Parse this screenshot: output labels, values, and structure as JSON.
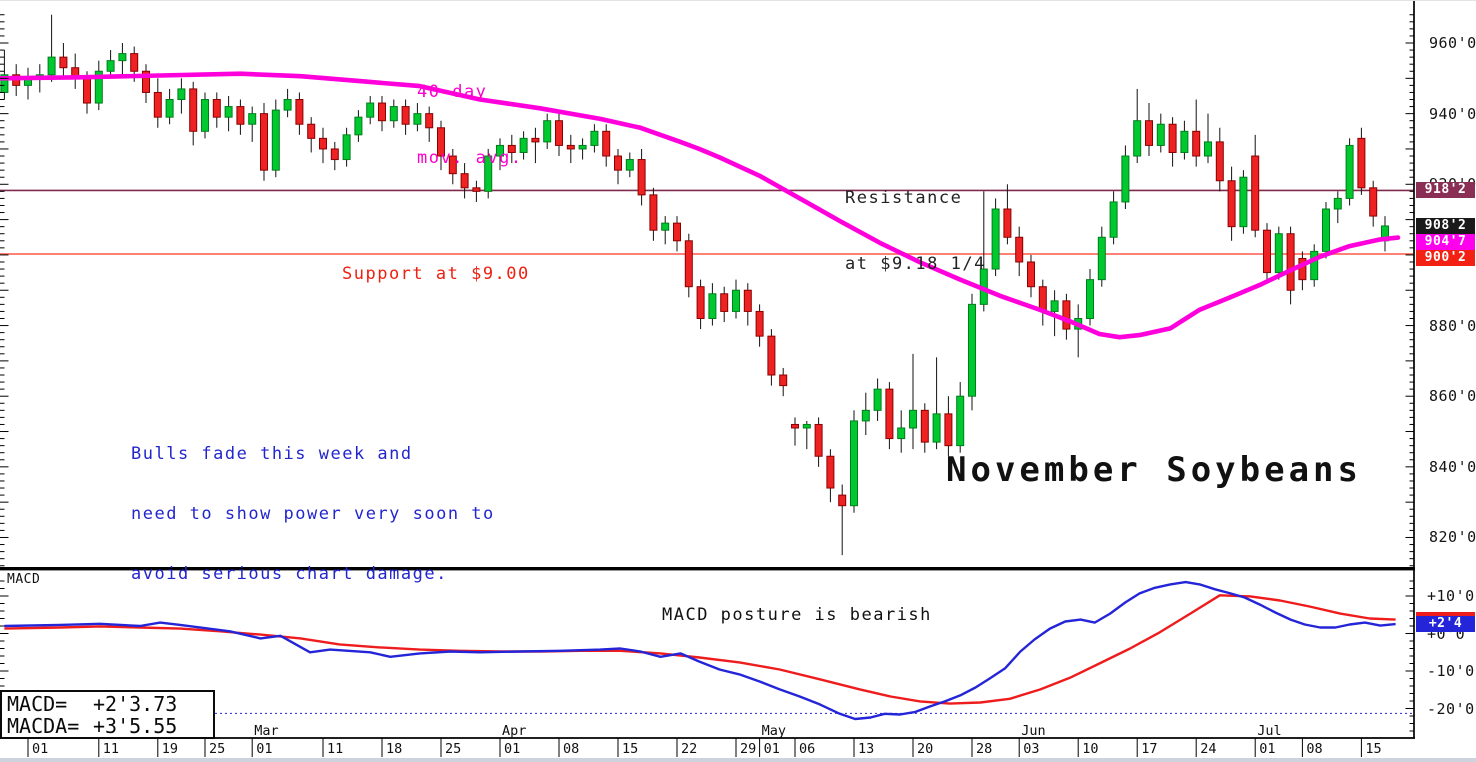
{
  "window": {
    "title": "November Soybeans"
  },
  "annotations": {
    "ma_line1": "40-day",
    "ma_line2": "mov. avg.",
    "resistance_line1": "Resistance",
    "resistance_line2": "at $9.18 1/4",
    "support": "Support at $9.00",
    "commentary_line1": "Bulls fade this week and",
    "commentary_line2": "need to show power very soon to",
    "commentary_line3": "avoid serious chart damage.",
    "macd_comment": "MACD posture is bearish",
    "panel_label": "MACD"
  },
  "readout": {
    "macd_label": "MACD=",
    "macd_value": "+2'3.73",
    "macda_label": "MACDA=",
    "macda_value": "+3'5.55"
  },
  "price_axis": {
    "labels": [
      {
        "text": "960'0",
        "value": 960
      },
      {
        "text": "940'0",
        "value": 940
      },
      {
        "text": "920'0",
        "value": 920
      },
      {
        "text": "880'0",
        "value": 880
      },
      {
        "text": "860'0",
        "value": 860
      },
      {
        "text": "840'0",
        "value": 840
      },
      {
        "text": "820'0",
        "value": 820
      }
    ],
    "badges": [
      {
        "text": "918'2",
        "value": 918.25,
        "color": "#8b2e55"
      },
      {
        "text": "908'2",
        "value": 908.25,
        "color": "#1a1a1a"
      },
      {
        "text": "904'7",
        "value": 904.875,
        "color": "#ff00ee"
      },
      {
        "text": "900'2",
        "value": 900.25,
        "color": "#f32114"
      }
    ]
  },
  "macd_axis": {
    "labels": [
      {
        "text": "+10'0",
        "value": 10
      },
      {
        "text": "+0'0",
        "value": 0
      },
      {
        "text": "-10'0",
        "value": -10
      },
      {
        "text": "-20'0",
        "value": -20
      }
    ],
    "badges": [
      {
        "text": "",
        "value": 3.7,
        "color": "#ee1c1c"
      },
      {
        "text": "+2'4",
        "value": 2.5,
        "color": "#2424d8"
      }
    ]
  },
  "x_axis": {
    "ticks": [
      {
        "label": "01",
        "day": 0
      },
      {
        "label": "11",
        "day": 6
      },
      {
        "label": "19",
        "day": 11
      },
      {
        "label": "25",
        "day": 15
      },
      {
        "label": "01",
        "day": 19
      },
      {
        "label": "11",
        "day": 25
      },
      {
        "label": "18",
        "day": 30
      },
      {
        "label": "25",
        "day": 35
      },
      {
        "label": "01",
        "day": 40
      },
      {
        "label": "08",
        "day": 45
      },
      {
        "label": "15",
        "day": 50
      },
      {
        "label": "22",
        "day": 55
      },
      {
        "label": "29",
        "day": 60
      },
      {
        "label": "01",
        "day": 62
      },
      {
        "label": "06",
        "day": 65
      },
      {
        "label": "13",
        "day": 70
      },
      {
        "label": "20",
        "day": 75
      },
      {
        "label": "28",
        "day": 80
      },
      {
        "label": "03",
        "day": 84
      },
      {
        "label": "10",
        "day": 89
      },
      {
        "label": "17",
        "day": 94
      },
      {
        "label": "24",
        "day": 99
      },
      {
        "label": "01",
        "day": 104
      },
      {
        "label": "08",
        "day": 108
      },
      {
        "label": "15",
        "day": 113
      }
    ],
    "months": [
      {
        "label": "Mar",
        "day": 19
      },
      {
        "label": "Apr",
        "day": 40
      },
      {
        "label": "May",
        "day": 62
      },
      {
        "label": "Jun",
        "day": 84
      },
      {
        "label": "Jul",
        "day": 104
      }
    ]
  },
  "colors": {
    "up": "#00c92f",
    "up_border": "#007d1c",
    "down": "#ee2222",
    "down_border": "#8b0000",
    "wick": "#111111",
    "ma": "#ff00dd",
    "resistance": "#802a4e",
    "support": "#ff6e60",
    "macd_line": "#2424d8",
    "macd_signal": "#ee1c1c",
    "axis": "#000000"
  },
  "chart_data": {
    "type": "candlestick+macd",
    "instrument": "November Soybeans",
    "levels": {
      "resistance": 918.25,
      "support": 900.25,
      "last_close": 908.25,
      "ma_current": 904.875
    },
    "first_candle_day": -2,
    "candles": [
      [
        946,
        958,
        944,
        951
      ],
      [
        951,
        954,
        945,
        948
      ],
      [
        948,
        953,
        944,
        950
      ],
      [
        950,
        954,
        946,
        951
      ],
      [
        951,
        968,
        949,
        956
      ],
      [
        956,
        960,
        950,
        953
      ],
      [
        953,
        957,
        947,
        950
      ],
      [
        950,
        952,
        940,
        943
      ],
      [
        943,
        955,
        941,
        952
      ],
      [
        952,
        958,
        950,
        955
      ],
      [
        955,
        960,
        951,
        957
      ],
      [
        957,
        959,
        949,
        952
      ],
      [
        952,
        954,
        943,
        946
      ],
      [
        946,
        950,
        936,
        939
      ],
      [
        939,
        947,
        937,
        944
      ],
      [
        944,
        950,
        940,
        947
      ],
      [
        947,
        949,
        931,
        935
      ],
      [
        935,
        946,
        933,
        944
      ],
      [
        944,
        946,
        936,
        939
      ],
      [
        939,
        945,
        935,
        942
      ],
      [
        942,
        944,
        934,
        937
      ],
      [
        937,
        942,
        932,
        940
      ],
      [
        940,
        943,
        921,
        924
      ],
      [
        924,
        944,
        922,
        941
      ],
      [
        941,
        947,
        939,
        944
      ],
      [
        944,
        946,
        934,
        937
      ],
      [
        937,
        939,
        929,
        933
      ],
      [
        933,
        936,
        926,
        930
      ],
      [
        930,
        932,
        924,
        927
      ],
      [
        927,
        936,
        925,
        934
      ],
      [
        934,
        941,
        932,
        939
      ],
      [
        939,
        945,
        937,
        943
      ],
      [
        943,
        945,
        935,
        938
      ],
      [
        938,
        944,
        936,
        942
      ],
      [
        942,
        944,
        934,
        937
      ],
      [
        937,
        943,
        935,
        940
      ],
      [
        940,
        942,
        932,
        936
      ],
      [
        936,
        938,
        924,
        928
      ],
      [
        928,
        930,
        920,
        923
      ],
      [
        923,
        926,
        916,
        919
      ],
      [
        919,
        921,
        915,
        918
      ],
      [
        918,
        930,
        916,
        928
      ],
      [
        928,
        933,
        924,
        931
      ],
      [
        931,
        934,
        926,
        929
      ],
      [
        929,
        935,
        927,
        933
      ],
      [
        933,
        936,
        926,
        932
      ],
      [
        932,
        940,
        930,
        938
      ],
      [
        938,
        940,
        928,
        931
      ],
      [
        931,
        934,
        926,
        930
      ],
      [
        930,
        933,
        927,
        931
      ],
      [
        931,
        937,
        929,
        935
      ],
      [
        935,
        937,
        925,
        928
      ],
      [
        928,
        930,
        920,
        924
      ],
      [
        924,
        929,
        922,
        927
      ],
      [
        927,
        930,
        914,
        917
      ],
      [
        917,
        919,
        904,
        907
      ],
      [
        907,
        911,
        903,
        909
      ],
      [
        909,
        911,
        901,
        904
      ],
      [
        904,
        906,
        888,
        891
      ],
      [
        891,
        893,
        879,
        882
      ],
      [
        882,
        892,
        880,
        889
      ],
      [
        889,
        891,
        881,
        884
      ],
      [
        884,
        893,
        882,
        890
      ],
      [
        890,
        892,
        880,
        884
      ],
      [
        884,
        886,
        874,
        877
      ],
      [
        877,
        879,
        863,
        866
      ],
      [
        866,
        868,
        860,
        863
      ],
      [
        852,
        854,
        846,
        851
      ],
      [
        851,
        853,
        845,
        852
      ],
      [
        852,
        854,
        840,
        843
      ],
      [
        843,
        845,
        830,
        834
      ],
      [
        832,
        835,
        815,
        829
      ],
      [
        829,
        856,
        827,
        853
      ],
      [
        853,
        861,
        849,
        856
      ],
      [
        856,
        865,
        853,
        862
      ],
      [
        862,
        864,
        845,
        848
      ],
      [
        848,
        856,
        844,
        851
      ],
      [
        851,
        872,
        845,
        856
      ],
      [
        856,
        858,
        844,
        847
      ],
      [
        847,
        871,
        845,
        855
      ],
      [
        855,
        860,
        843,
        846
      ],
      [
        846,
        864,
        844,
        860
      ],
      [
        860,
        889,
        856,
        886
      ],
      [
        886,
        918,
        884,
        896
      ],
      [
        896,
        916,
        894,
        913
      ],
      [
        913,
        920,
        903,
        905
      ],
      [
        905,
        908,
        894,
        898
      ],
      [
        898,
        900,
        888,
        891
      ],
      [
        891,
        893,
        880,
        884
      ],
      [
        884,
        890,
        877,
        887
      ],
      [
        887,
        889,
        876,
        879
      ],
      [
        879,
        886,
        871,
        882
      ],
      [
        882,
        896,
        880,
        893
      ],
      [
        893,
        908,
        891,
        905
      ],
      [
        905,
        918,
        903,
        915
      ],
      [
        915,
        931,
        913,
        928
      ],
      [
        928,
        947,
        926,
        938
      ],
      [
        938,
        943,
        928,
        931
      ],
      [
        931,
        940,
        929,
        937
      ],
      [
        937,
        939,
        925,
        929
      ],
      [
        929,
        938,
        927,
        935
      ],
      [
        935,
        944,
        925,
        928
      ],
      [
        928,
        940,
        926,
        932
      ],
      [
        932,
        936,
        918,
        921
      ],
      [
        921,
        925,
        904,
        908
      ],
      [
        908,
        924,
        906,
        922
      ],
      [
        928,
        934,
        905,
        907
      ],
      [
        907,
        909,
        893,
        895
      ],
      [
        895,
        908,
        893,
        906
      ],
      [
        906,
        908,
        886,
        890
      ],
      [
        899,
        901,
        890,
        893
      ],
      [
        893,
        903,
        891,
        901
      ],
      [
        901,
        915,
        899,
        913
      ],
      [
        913,
        918,
        909,
        916
      ],
      [
        916,
        933,
        914,
        931
      ],
      [
        933,
        936,
        917,
        919
      ],
      [
        919,
        921,
        908,
        911
      ],
      [
        904,
        911,
        901,
        908.2
      ]
    ],
    "ma40": [
      [
        -2.4,
        950
      ],
      [
        4.4,
        950.3
      ],
      [
        11.2,
        950.8
      ],
      [
        18,
        951.3
      ],
      [
        23.1,
        950.6
      ],
      [
        28.1,
        949.2
      ],
      [
        33.2,
        947.8
      ],
      [
        38.3,
        944
      ],
      [
        43.4,
        941.5
      ],
      [
        48.5,
        938.5
      ],
      [
        51.9,
        936
      ],
      [
        55.3,
        932
      ],
      [
        56.9,
        930
      ],
      [
        58.6,
        927.6
      ],
      [
        62,
        922.4
      ],
      [
        65.4,
        916
      ],
      [
        68.8,
        909.6
      ],
      [
        72.2,
        903.4
      ],
      [
        75.6,
        897.9
      ],
      [
        79,
        893
      ],
      [
        82.4,
        888.4
      ],
      [
        85.8,
        884.4
      ],
      [
        88.3,
        881.2
      ],
      [
        90.8,
        877.6
      ],
      [
        92.5,
        876.7
      ],
      [
        94.2,
        877.3
      ],
      [
        96.8,
        879.2
      ],
      [
        99.3,
        884.5
      ],
      [
        101.9,
        888
      ],
      [
        104.4,
        891.5
      ],
      [
        106.9,
        895.5
      ],
      [
        109.5,
        899.5
      ],
      [
        112,
        902.5
      ],
      [
        114.6,
        904.4
      ],
      [
        116.1,
        904.9
      ]
    ],
    "macd": {
      "dotted_level": -21.3,
      "line": [
        [
          -2,
          2.0
        ],
        [
          2.7,
          2.3
        ],
        [
          6.1,
          2.6
        ],
        [
          9.5,
          2.0
        ],
        [
          11.2,
          2.9
        ],
        [
          12.9,
          2.3
        ],
        [
          17.1,
          0.6
        ],
        [
          19.7,
          -1.3
        ],
        [
          21.4,
          -0.6
        ],
        [
          23.9,
          -5.0
        ],
        [
          25.6,
          -4.3
        ],
        [
          29,
          -5.0
        ],
        [
          30.7,
          -6.2
        ],
        [
          33.2,
          -5.3
        ],
        [
          35.8,
          -4.8
        ],
        [
          38.3,
          -5.0
        ],
        [
          41.7,
          -4.8
        ],
        [
          45.1,
          -4.6
        ],
        [
          48.5,
          -4.3
        ],
        [
          50.2,
          -4.0
        ],
        [
          51.9,
          -4.8
        ],
        [
          53.6,
          -6.2
        ],
        [
          55.3,
          -5.3
        ],
        [
          56.9,
          -7.5
        ],
        [
          58.6,
          -9.6
        ],
        [
          60.3,
          -10.9
        ],
        [
          62,
          -12.8
        ],
        [
          63.7,
          -14.9
        ],
        [
          65.4,
          -16.8
        ],
        [
          67.1,
          -18.9
        ],
        [
          68.8,
          -21.4
        ],
        [
          70.1,
          -22.8
        ],
        [
          71.4,
          -22.4
        ],
        [
          72.6,
          -21.4
        ],
        [
          73.9,
          -21.6
        ],
        [
          75.2,
          -20.9
        ],
        [
          76.4,
          -19.5
        ],
        [
          77.7,
          -18.1
        ],
        [
          79,
          -16.5
        ],
        [
          80.3,
          -14.4
        ],
        [
          81.5,
          -12.0
        ],
        [
          82.8,
          -9.3
        ],
        [
          84.1,
          -4.8
        ],
        [
          85.3,
          -1.6
        ],
        [
          86.6,
          1.3
        ],
        [
          87.9,
          3.2
        ],
        [
          89.2,
          3.7
        ],
        [
          90.4,
          2.9
        ],
        [
          91.7,
          5.3
        ],
        [
          93,
          8.3
        ],
        [
          94.2,
          10.7
        ],
        [
          95.5,
          12.2
        ],
        [
          96.8,
          13.1
        ],
        [
          98.1,
          13.7
        ],
        [
          99.3,
          13.1
        ],
        [
          100.6,
          11.8
        ],
        [
          101.9,
          10.7
        ],
        [
          103.1,
          9.6
        ],
        [
          104.4,
          7.7
        ],
        [
          105.7,
          5.6
        ],
        [
          107,
          3.7
        ],
        [
          108.2,
          2.4
        ],
        [
          109.5,
          1.6
        ],
        [
          110.8,
          1.6
        ],
        [
          112,
          2.4
        ],
        [
          113.3,
          2.9
        ],
        [
          114.6,
          2.1
        ],
        [
          115.9,
          2.5
        ]
      ],
      "signal": [
        [
          -2,
          1.3
        ],
        [
          2.7,
          1.6
        ],
        [
          6.1,
          1.9
        ],
        [
          9.5,
          1.6
        ],
        [
          12.9,
          1.3
        ],
        [
          16.3,
          0.6
        ],
        [
          19.7,
          -0.3
        ],
        [
          23.1,
          -1.3
        ],
        [
          26.4,
          -2.9
        ],
        [
          29.8,
          -3.7
        ],
        [
          33.2,
          -4.3
        ],
        [
          36.6,
          -4.6
        ],
        [
          40,
          -4.8
        ],
        [
          43.4,
          -4.8
        ],
        [
          46.8,
          -4.6
        ],
        [
          50.2,
          -4.6
        ],
        [
          53.6,
          -5.3
        ],
        [
          56.9,
          -6.4
        ],
        [
          60.3,
          -7.7
        ],
        [
          63.7,
          -9.6
        ],
        [
          67.1,
          -12.2
        ],
        [
          70.5,
          -14.9
        ],
        [
          73.1,
          -16.8
        ],
        [
          75.6,
          -18.1
        ],
        [
          78.1,
          -18.7
        ],
        [
          80.7,
          -18.4
        ],
        [
          83.2,
          -17.4
        ],
        [
          85.8,
          -14.9
        ],
        [
          88.3,
          -11.8
        ],
        [
          90.8,
          -8.0
        ],
        [
          93.4,
          -4.0
        ],
        [
          95.9,
          0.3
        ],
        [
          98.5,
          5.3
        ],
        [
          101,
          10.2
        ],
        [
          103.6,
          9.9
        ],
        [
          106.1,
          8.8
        ],
        [
          108.6,
          7.2
        ],
        [
          111.2,
          5.3
        ],
        [
          113.7,
          4.0
        ],
        [
          115.9,
          3.7
        ]
      ]
    },
    "price_ticks": {
      "min": 812,
      "max": 968,
      "minor_step": 2,
      "major_step": 10,
      "label_step": 20
    },
    "macd_ticks": {
      "min": -26,
      "max": 14,
      "minor_step": 2,
      "major_step": 10
    }
  }
}
